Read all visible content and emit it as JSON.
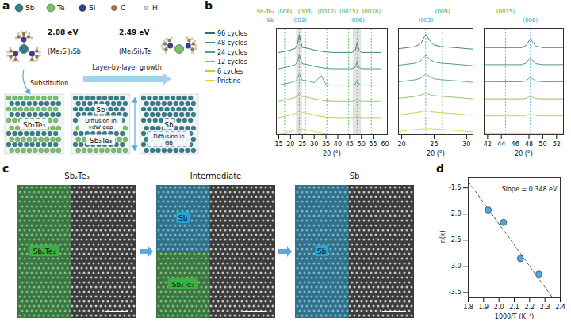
{
  "panel_letters": [
    "a",
    "b",
    "c",
    "d"
  ],
  "diagram_a": {
    "atoms": [
      {
        "label": "Sb",
        "color": "#2f7f8c"
      },
      {
        "label": "Te",
        "color": "#74c365"
      },
      {
        "label": "Si",
        "color": "#3b3f8f"
      },
      {
        "label": "C",
        "color": "#9a7a3a"
      },
      {
        "label": "H",
        "color": "#d4d4d4"
      }
    ],
    "precursors": [
      {
        "energy": "2.08 eV",
        "formula": "(Me₃Si)₃Sb"
      },
      {
        "energy": "2.49 eV",
        "formula": "(Me₃Si)₂Te"
      }
    ],
    "substitution": "Substitution",
    "growth": "Layer-by-layer growth",
    "stages": [
      {
        "regions": [
          "Sb₂Te₃"
        ]
      },
      {
        "regions": [
          "Sb",
          "Sb₂Te₃"
        ],
        "process": "Diffusion in vdW gap"
      },
      {
        "regions": [
          "Sb"
        ],
        "process": "Diffusion in GB"
      }
    ]
  },
  "chart_data": [
    {
      "type": "line",
      "x_label": "2θ (°)",
      "tick_labels": "x",
      "legend": "left",
      "series": [
        {
          "name": "96 cycles",
          "color": "#2f6e73"
        },
        {
          "name": "48 cycles",
          "color": "#3b8c7e"
        },
        {
          "name": "24 cycles",
          "color": "#4ea576"
        },
        {
          "name": "12 cycles",
          "color": "#86c05a"
        },
        {
          "name": "6 cycles",
          "color": "#b8cf3a"
        },
        {
          "name": "Pristine",
          "color": "#e0d22a"
        }
      ],
      "phases": [
        {
          "name": "Sb₂Te₃",
          "color": "#3cb043"
        },
        {
          "name": "Sb",
          "color": "#29a3d6"
        }
      ],
      "subplots": [
        {
          "x": [
            15,
            17.5,
            20,
            22,
            23,
            23.7,
            24.5,
            25,
            26.3,
            28,
            30,
            33,
            35,
            38,
            40,
            42,
            44.6,
            46,
            47.4,
            48.2,
            49,
            50,
            52,
            55,
            58
          ],
          "xlim": [
            14,
            61
          ],
          "xticks": [
            15,
            20,
            25,
            30,
            35,
            40,
            45,
            50,
            55,
            60
          ],
          "ylim": [
            0,
            6.5
          ],
          "values": [
            [
              5.05,
              5.12,
              5.2,
              5.3,
              5.57,
              6.15,
              5.63,
              5.35,
              5.33,
              5.28,
              5.2,
              5.12,
              5.08,
              5.05,
              5.05,
              5.05,
              5.05,
              5.05,
              5.17,
              5.65,
              5.17,
              5.05,
              5.05,
              5.05,
              5.05
            ],
            [
              4.05,
              4.12,
              4.2,
              4.3,
              4.5,
              4.9,
              4.54,
              4.35,
              4.33,
              4.28,
              4.2,
              4.12,
              4.08,
              4.05,
              4.05,
              4.05,
              4.05,
              4.05,
              4.14,
              4.5,
              4.14,
              4.05,
              4.05,
              4.05,
              4.05
            ],
            [
              3.05,
              3.12,
              3.2,
              3.3,
              3.45,
              3.75,
              3.49,
              3.35,
              3.33,
              3.28,
              3.2,
              3.62,
              3.08,
              3.05,
              3.05,
              3.05,
              3.05,
              3.05,
              3.11,
              3.35,
              3.11,
              3.05,
              3.05,
              3.05,
              3.05
            ],
            [
              2.05,
              2.12,
              2.2,
              2.3,
              2.39,
              2.55,
              2.42,
              2.35,
              2.33,
              2.28,
              2.2,
              2.12,
              2.08,
              2.05,
              2.05,
              2.05,
              2.05,
              2.05,
              2.08,
              2.2,
              2.08,
              2.05,
              2.05,
              2.05,
              2.05
            ],
            [
              1.05,
              1.12,
              1.2,
              1.3,
              1.38,
              1.5,
              1.4,
              1.35,
              1.33,
              1.28,
              1.2,
              1.12,
              1.08,
              1.05,
              1.05,
              1.05,
              1.05,
              1.05,
              1.07,
              1.15,
              1.07,
              1.05,
              1.05,
              1.05,
              1.05
            ],
            [
              0.05,
              0.12,
              0.2,
              0.3,
              0.33,
              0.35,
              0.35,
              0.35,
              0.33,
              0.28,
              0.2,
              0.12,
              0.08,
              0.05,
              0.05,
              0.05,
              0.05,
              0.05,
              0.05,
              0.05,
              0.05,
              0.05,
              0.05,
              0.05,
              0.05
            ]
          ],
          "shaded": [
            [
              22.5,
              25
            ],
            [
              46.5,
              50
            ]
          ],
          "reference_lines": [
            {
              "phase": "Sb₂Te₃",
              "value": 17.5,
              "label": "(006)"
            },
            {
              "phase": "Sb₂Te₃",
              "value": 26.3,
              "label": "(009)"
            },
            {
              "phase": "Sb₂Te₃",
              "value": 35.4,
              "label": "(0012)"
            },
            {
              "phase": "Sb₂Te₃",
              "value": 44.6,
              "label": "(0015)"
            },
            {
              "phase": "Sb₂Te₃",
              "value": 54.2,
              "label": "(0018)"
            },
            {
              "phase": "Sb",
              "value": 23.7,
              "label": "(003)"
            },
            {
              "phase": "Sb",
              "value": 48.2,
              "label": "(006)"
            }
          ]
        },
        {
          "x": [
            19.5,
            20,
            21,
            22,
            22.5,
            23,
            23.4,
            23.7,
            24,
            24.5,
            25,
            26,
            26.3,
            27,
            28,
            29,
            30,
            31
          ],
          "xlim": [
            19.5,
            31
          ],
          "xticks": [
            20,
            25,
            30
          ],
          "ylim": [
            0,
            6.4
          ],
          "values": [
            [
              5.2,
              5.22,
              5.27,
              5.32,
              5.41,
              5.56,
              5.85,
              6.06,
              5.89,
              5.61,
              5.42,
              5.33,
              5.32,
              5.3,
              5.27,
              5.24,
              5.2,
              5.17
            ],
            [
              4.2,
              4.22,
              4.27,
              4.32,
              4.39,
              4.49,
              4.68,
              4.81,
              4.7,
              4.52,
              4.4,
              4.33,
              4.32,
              4.3,
              4.27,
              4.24,
              4.2,
              4.17
            ],
            [
              3.2,
              3.22,
              3.27,
              3.32,
              3.37,
              3.44,
              3.57,
              3.66,
              3.59,
              3.47,
              3.38,
              3.33,
              3.32,
              3.3,
              3.27,
              3.24,
              3.2,
              3.17
            ],
            [
              2.2,
              2.22,
              2.27,
              2.32,
              2.36,
              2.4,
              2.47,
              2.51,
              2.47,
              2.41,
              2.37,
              2.33,
              2.32,
              2.3,
              2.27,
              2.24,
              2.2,
              2.17
            ],
            [
              1.2,
              1.22,
              1.27,
              1.32,
              1.35,
              1.38,
              1.43,
              1.46,
              1.44,
              1.4,
              1.36,
              1.33,
              1.32,
              1.3,
              1.27,
              1.24,
              1.2,
              1.17
            ],
            [
              0.2,
              0.22,
              0.27,
              0.32,
              0.34,
              0.35,
              0.36,
              0.36,
              0.36,
              0.36,
              0.35,
              0.33,
              0.32,
              0.3,
              0.27,
              0.24,
              0.2,
              0.17
            ]
          ],
          "reference_lines": [
            {
              "phase": "Sb",
              "value": 23.7,
              "label": "(003)"
            },
            {
              "phase": "Sb₂Te₃",
              "value": 26.3,
              "label": "(009)"
            }
          ]
        },
        {
          "x": [
            41.5,
            42,
            43,
            44,
            44.6,
            45,
            46,
            47,
            47.6,
            48,
            48.2,
            48.5,
            49,
            50,
            51,
            52,
            53
          ],
          "xlim": [
            41.5,
            53
          ],
          "xticks": [
            42,
            44,
            46,
            48,
            50,
            52
          ],
          "ylim": [
            0,
            6.2
          ],
          "values": [
            [
              5.1,
              5.1,
              5.1,
              5.1,
              5.1,
              5.1,
              5.1,
              5.1,
              5.23,
              5.5,
              5.6,
              5.45,
              5.18,
              5.1,
              5.1,
              5.1,
              5.1
            ],
            [
              4.1,
              4.1,
              4.1,
              4.1,
              4.1,
              4.1,
              4.1,
              4.1,
              4.2,
              4.42,
              4.5,
              4.38,
              4.16,
              4.1,
              4.1,
              4.1,
              4.1
            ],
            [
              3.1,
              3.1,
              3.1,
              3.1,
              3.1,
              3.1,
              3.1,
              3.1,
              3.16,
              3.3,
              3.35,
              3.28,
              3.14,
              3.1,
              3.1,
              3.1,
              3.1
            ],
            [
              2.1,
              2.1,
              2.1,
              2.1,
              2.1,
              2.1,
              2.1,
              2.1,
              2.14,
              2.22,
              2.25,
              2.21,
              2.12,
              2.1,
              2.1,
              2.1,
              2.1
            ],
            [
              1.1,
              1.1,
              1.1,
              1.1,
              1.1,
              1.1,
              1.1,
              1.1,
              1.13,
              1.18,
              1.2,
              1.17,
              1.12,
              1.1,
              1.1,
              1.1,
              1.1
            ],
            [
              0.1,
              0.1,
              0.1,
              0.1,
              0.1,
              0.1,
              0.1,
              0.1,
              0.1,
              0.1,
              0.1,
              0.1,
              0.1,
              0.1,
              0.1,
              0.1,
              0.1
            ]
          ],
          "reference_lines": [
            {
              "phase": "Sb₂Te₃",
              "value": 44.6,
              "label": "(0015)"
            },
            {
              "phase": "Sb",
              "value": 48.2,
              "label": "(006)"
            }
          ]
        }
      ]
    },
    {
      "type": "scatter",
      "x_label": "1000/T (K⁻¹)",
      "y_label": "ln(k)",
      "color": "#4ea8de",
      "x": [
        1.93,
        2.03,
        2.14,
        2.26
      ],
      "values": [
        -1.92,
        -2.16,
        -2.85,
        -3.15
      ],
      "xlim": [
        1.8,
        2.4
      ],
      "xticks": [
        1.8,
        1.9,
        {
          "value": 2,
          "label": "2.0"
        },
        2.1,
        2.2,
        2.3,
        2.4
      ],
      "ylim": [
        -3.6,
        -1.3
      ],
      "yticks": [
        -3.5,
        {
          "value": -3,
          "label": "-3.0"
        },
        -2.5,
        {
          "value": -2,
          "label": "-2.0"
        },
        -1.5
      ],
      "fit": {
        "x": [
          1.8,
          2.36
        ],
        "values": [
          -1.38,
          -3.64
        ],
        "line_style": "dashed"
      },
      "annotation": "Slope = 0.348 eV"
    }
  ],
  "panel_c": {
    "stages": [
      {
        "title": "Sb₂Te₃",
        "regions": [
          "Sb₂Te₃"
        ]
      },
      {
        "title": "Intermediate",
        "regions": [
          "Sb",
          "Sb₂Te₃"
        ]
      },
      {
        "title": "Sb",
        "regions": [
          "Sb"
        ]
      }
    ]
  }
}
